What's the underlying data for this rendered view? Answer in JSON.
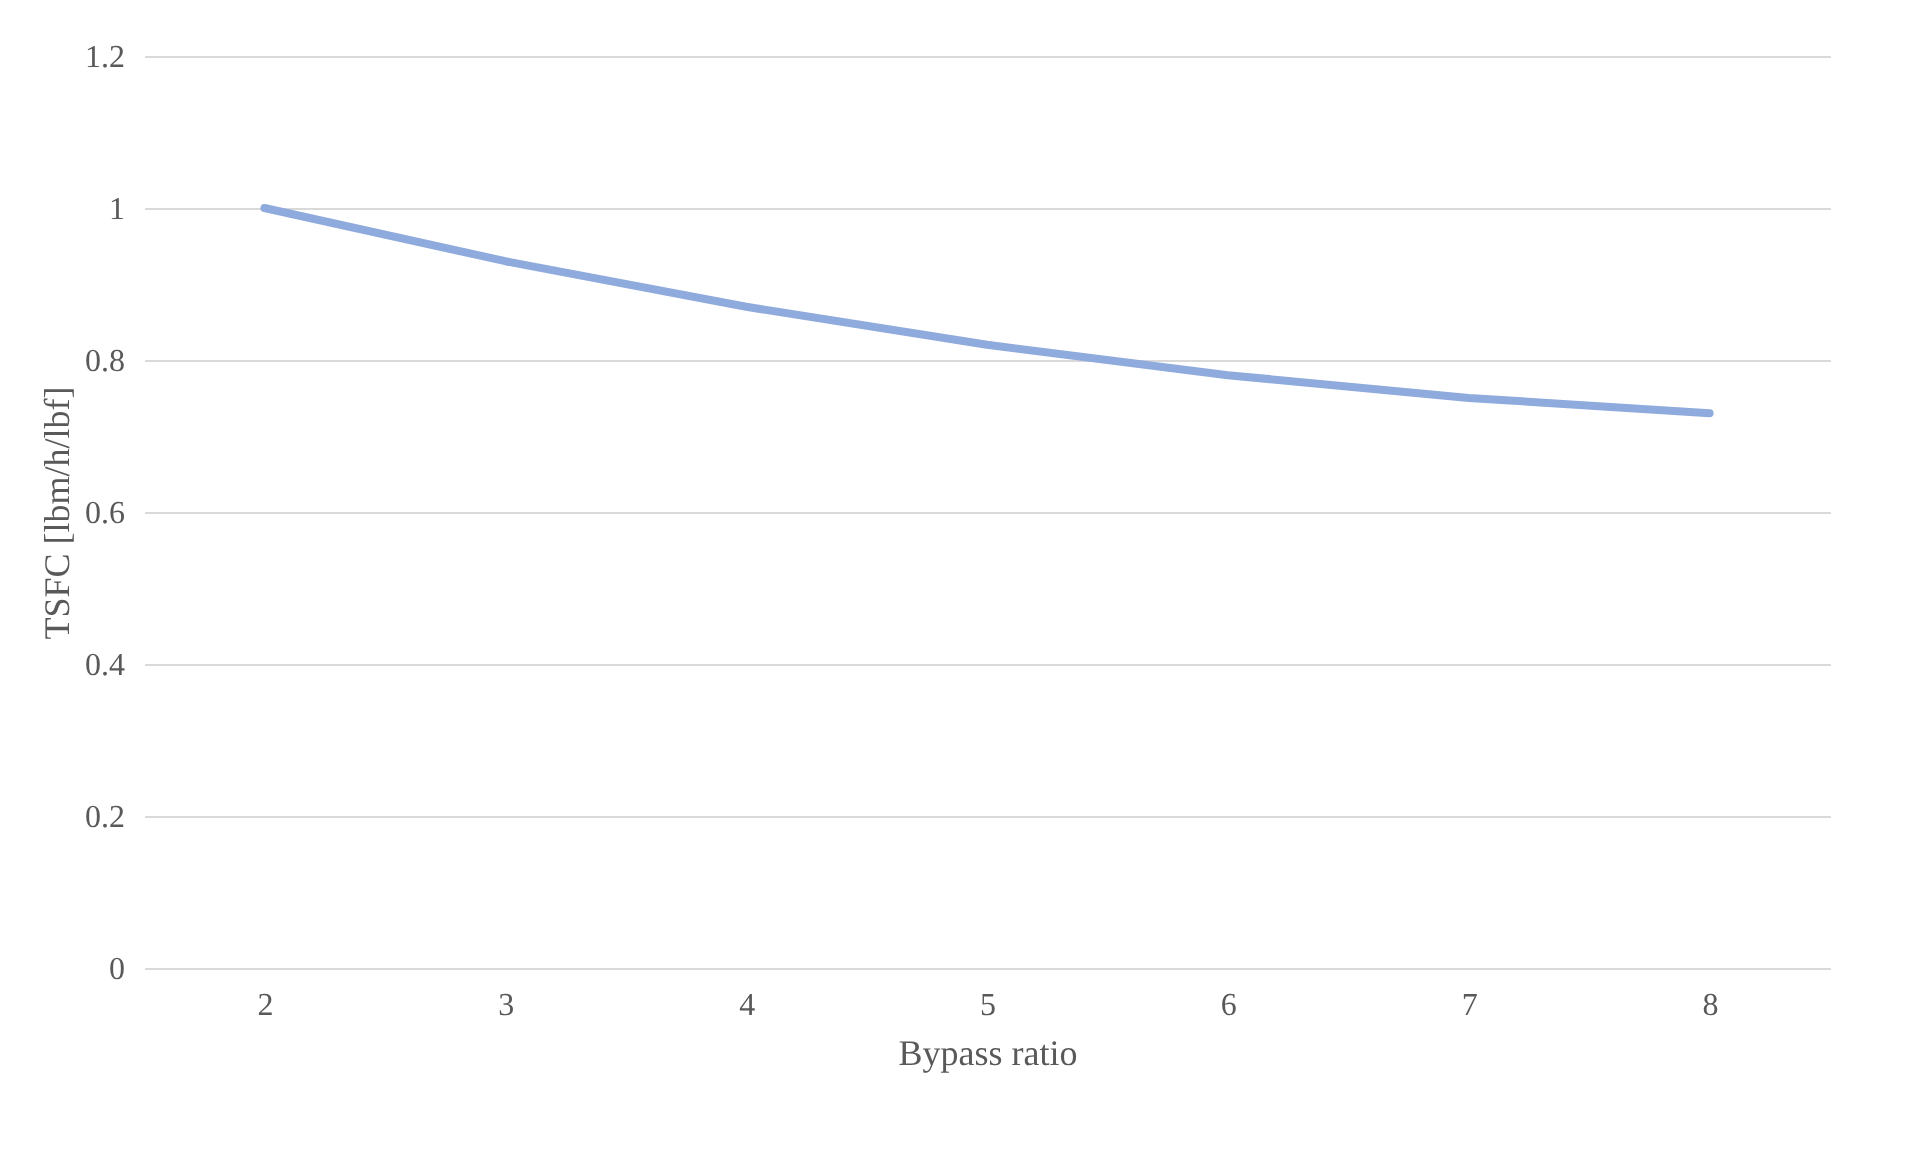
{
  "chart_data": {
    "type": "line",
    "xlabel": "Bypass ratio",
    "ylabel": "TSFC [lbm/h/lbf]",
    "categories": [
      "2",
      "3",
      "4",
      "5",
      "6",
      "7",
      "8"
    ],
    "series": [
      {
        "color": "#8faadc",
        "values": [
          1.0,
          0.93,
          0.87,
          0.82,
          0.78,
          0.75,
          0.73
        ]
      }
    ],
    "ylim": [
      0,
      1.2
    ],
    "yticks": [
      0,
      0.2,
      0.4,
      0.6,
      0.8,
      1,
      1.2
    ],
    "grid": "y",
    "marker": "none",
    "line_style": "solid"
  }
}
